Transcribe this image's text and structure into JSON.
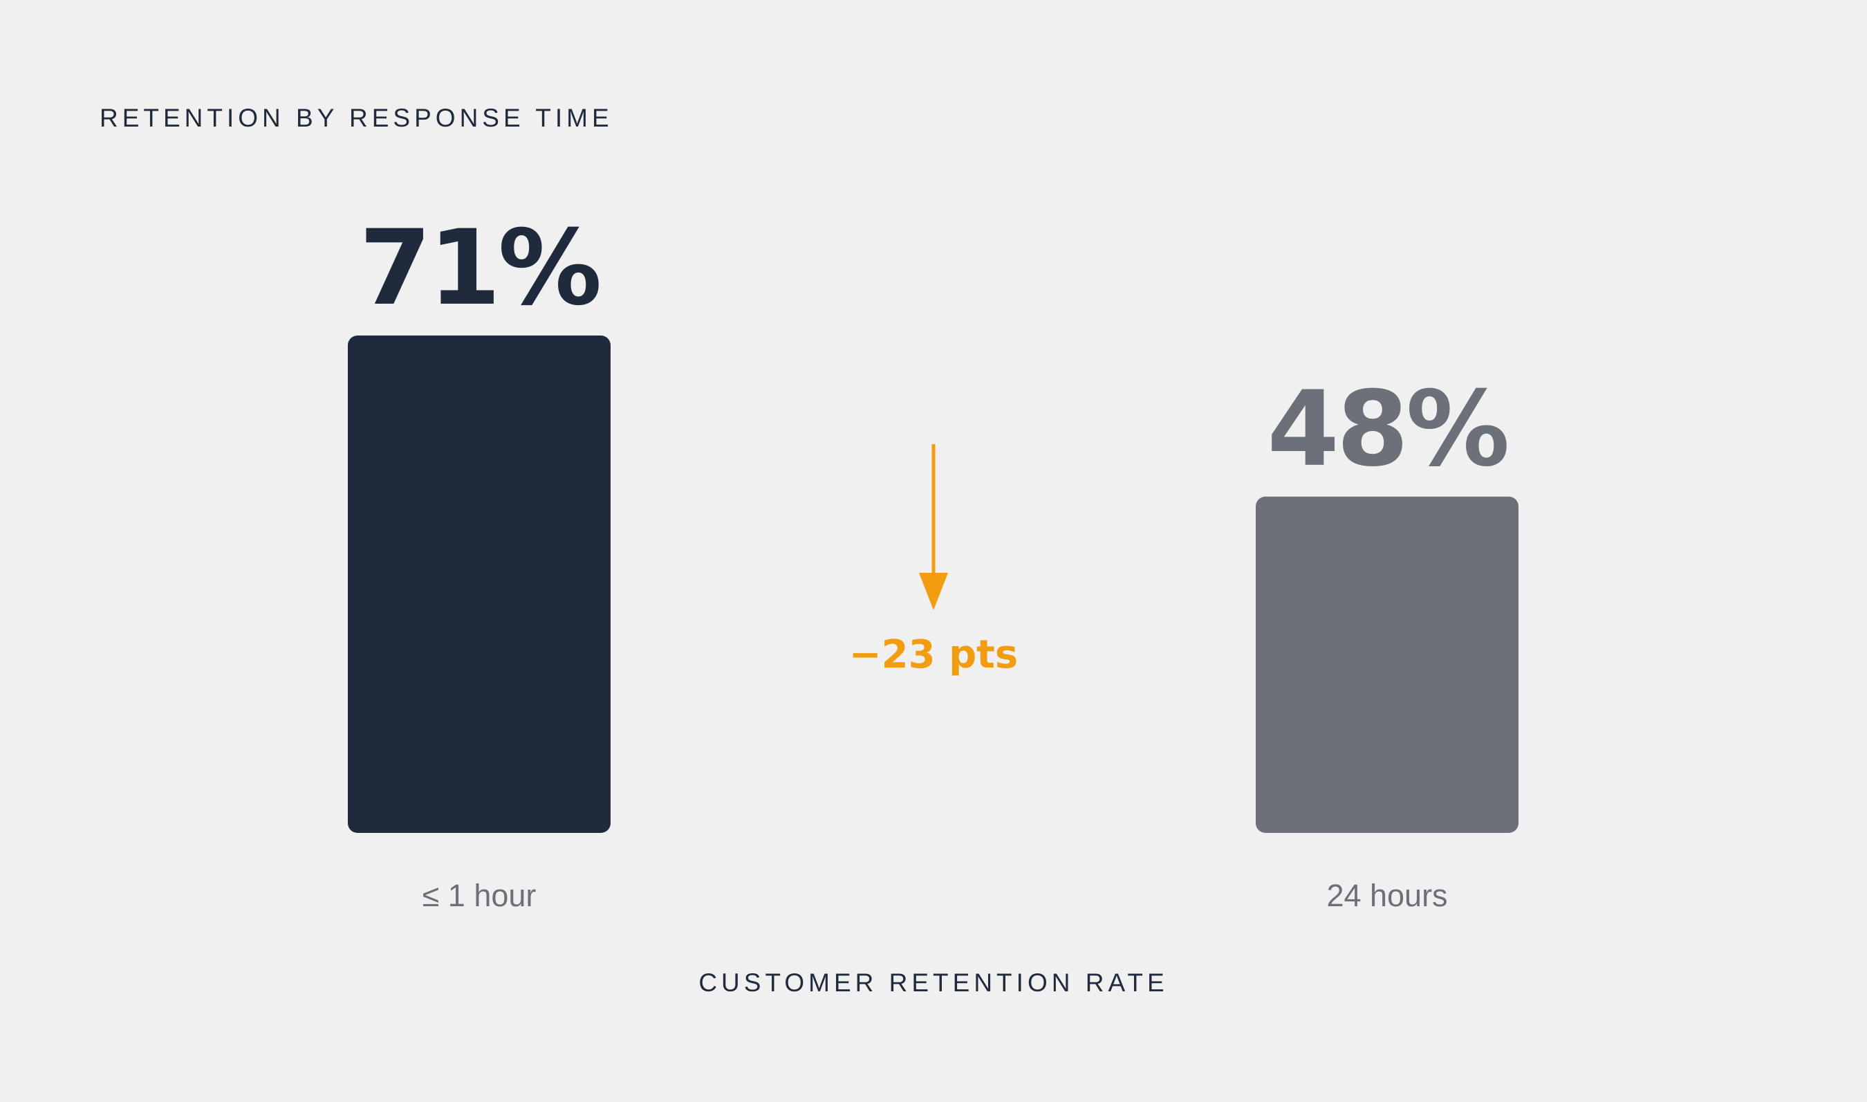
{
  "chart_data": {
    "type": "bar",
    "title": "RETENTION BY RESPONSE TIME",
    "xlabel": "CUSTOMER RETENTION RATE",
    "ylabel": "",
    "categories": [
      "≤ 1 hour",
      "24 hours"
    ],
    "values": [
      71,
      48
    ],
    "value_labels": [
      "71%",
      "48%"
    ],
    "unit": "%",
    "ylim": [
      0,
      71
    ],
    "grid": false,
    "colors": [
      "#1f2a3c",
      "#6b7079"
    ],
    "annotation": {
      "text": "−23 pts",
      "direction": "down",
      "color": "#f29c12"
    }
  }
}
